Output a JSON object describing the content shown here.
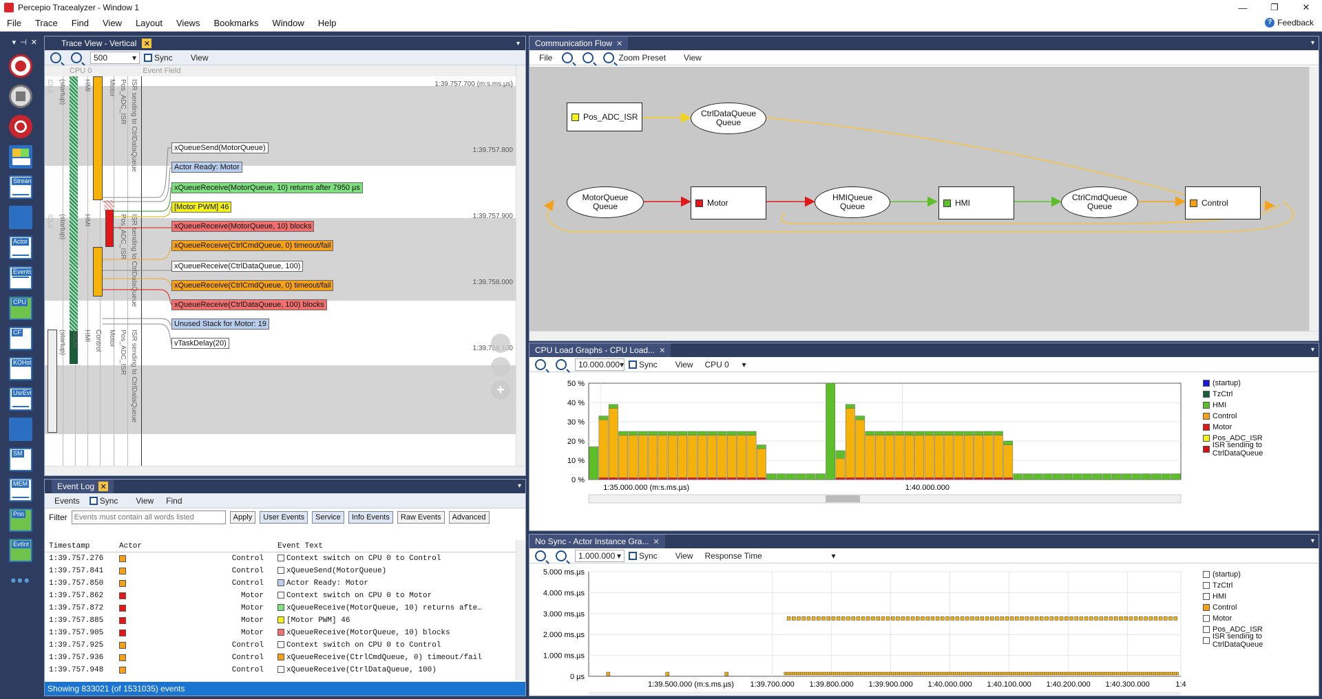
{
  "window": {
    "title": "Percepio Tracealyzer - Window 1",
    "feedback": "Feedback"
  },
  "menu": [
    "File",
    "Trace",
    "Find",
    "View",
    "Layout",
    "Views",
    "Bookmarks",
    "Window",
    "Help"
  ],
  "left_toolbar": {
    "header": [
      "▾",
      "⊣",
      "✕"
    ],
    "tools": [
      "Stream",
      "Actor",
      "Events",
      "CPU",
      "CF",
      "KOHst",
      "UsrEvt",
      "SM",
      "MEM",
      "Prio",
      "EvtInt"
    ],
    "more": "•••"
  },
  "trace_view": {
    "tab": "Trace View - Vertical",
    "zoom_value": "500",
    "sync": "Sync",
    "view": "View",
    "header_cpu": "CPU 0",
    "header_event_field": "Event Field",
    "timestamps": [
      "1:39.757.700 (m:s.ms.µs)",
      "1:39.757.800",
      "1:39.757.900",
      "1:39.758.000",
      "1:39.758.100"
    ],
    "column_labels": [
      "IDLE",
      "(startup)",
      "HMI",
      "Motor",
      "Pos_ADC_ISR",
      "ISR sending to CtrlDataQueue"
    ],
    "column_labels_2": [
      "IDLE",
      "(startup)",
      "HMI",
      "Pos_ADC_ISR",
      "ISR sending to CtrlDataQueue"
    ],
    "column_labels_3": [
      "(startup)",
      "TzCtrl",
      "HMI",
      "Control",
      "Motor",
      "Pos_ADC_ISR",
      "ISR sending to CtrlDataQueue"
    ],
    "events": [
      {
        "text": "xQueueSend(MotorQueue)",
        "bg": "#ffffff"
      },
      {
        "text": "Actor Ready: Motor",
        "bg": "#b9cdee"
      },
      {
        "text": "xQueueReceive(MotorQueue, 10) returns after 7950 µs",
        "bg": "#7fe07f"
      },
      {
        "text": "[Motor PWM] 46",
        "bg": "#f2f21a"
      },
      {
        "text": "xQueueReceive(MotorQueue, 10) blocks",
        "bg": "#f07070"
      },
      {
        "text": "xQueueReceive(CtrlCmdQueue, 0) timeout/fail",
        "bg": "#f5a21a"
      },
      {
        "text": "xQueueReceive(CtrlDataQueue, 100)",
        "bg": "#ffffff"
      },
      {
        "text": "xQueueReceive(CtrlCmdQueue, 0) timeout/fail",
        "bg": "#f5a21a"
      },
      {
        "text": "xQueueReceive(CtrlDataQueue, 100) blocks",
        "bg": "#f07070"
      },
      {
        "text": "Unused Stack for Motor: 19",
        "bg": "#b9cdee"
      },
      {
        "text": "vTaskDelay(20)",
        "bg": "#ffffff"
      }
    ]
  },
  "event_log": {
    "tab": "Event Log",
    "toolbar": [
      "Events",
      "Sync",
      "View",
      "Find"
    ],
    "filter_label": "Filter",
    "filter_placeholder": "Events must contain all words listed",
    "buttons": [
      "Apply",
      "User Events",
      "Service",
      "Info Events",
      "Raw Events",
      "Advanced"
    ],
    "columns": [
      "Timestamp",
      "Actor",
      "Event Text"
    ],
    "rows": [
      {
        "ts": "1:39.757.276",
        "actor": "Control",
        "ac": "#f5a21a",
        "ec": "#ffffff",
        "text": "Context switch on CPU 0 to Control"
      },
      {
        "ts": "1:39.757.841",
        "actor": "Control",
        "ac": "#f5a21a",
        "ec": "#ffffff",
        "text": "xQueueSend(MotorQueue)"
      },
      {
        "ts": "1:39.757.850",
        "actor": "Control",
        "ac": "#f5a21a",
        "ec": "#b9cdee",
        "text": "Actor Ready: Motor"
      },
      {
        "ts": "1:39.757.862",
        "actor": "Motor",
        "ac": "#e01818",
        "ec": "#ffffff",
        "text": "Context switch on CPU 0 to Motor"
      },
      {
        "ts": "1:39.757.872",
        "actor": "Motor",
        "ac": "#e01818",
        "ec": "#7fe07f",
        "text": "xQueueReceive(MotorQueue, 10) returns afte…"
      },
      {
        "ts": "1:39.757.885",
        "actor": "Motor",
        "ac": "#e01818",
        "ec": "#f2f21a",
        "text": "[Motor PWM] 46"
      },
      {
        "ts": "1:39.757.905",
        "actor": "Motor",
        "ac": "#e01818",
        "ec": "#f07070",
        "text": "xQueueReceive(MotorQueue, 10) blocks"
      },
      {
        "ts": "1:39.757.925",
        "actor": "Control",
        "ac": "#f5a21a",
        "ec": "#ffffff",
        "text": "Context switch on CPU 0 to Control"
      },
      {
        "ts": "1:39.757.936",
        "actor": "Control",
        "ac": "#f5a21a",
        "ec": "#f5a21a",
        "text": "xQueueReceive(CtrlCmdQueue, 0) timeout/fail"
      },
      {
        "ts": "1:39.757.948",
        "actor": "Control",
        "ac": "#f5a21a",
        "ec": "#ffffff",
        "text": "xQueueReceive(CtrlDataQueue, 100)"
      }
    ],
    "status": "Showing 833021 (of 1531035) events"
  },
  "comm_flow": {
    "tab": "Communication Flow",
    "toolbar": [
      "File",
      "Zoom Preset",
      "View"
    ],
    "nodes": [
      {
        "id": "pos",
        "label": "Pos_ADC_ISR",
        "kind": "rect",
        "color": "#f2f21a"
      },
      {
        "id": "cdq",
        "label": "CtrlDataQueue\nQueue",
        "kind": "ell"
      },
      {
        "id": "mq",
        "label": "MotorQueue\nQueue",
        "kind": "ell"
      },
      {
        "id": "motor",
        "label": "Motor",
        "kind": "rect",
        "color": "#e01818"
      },
      {
        "id": "hq",
        "label": "HMIQueue\nQueue",
        "kind": "ell"
      },
      {
        "id": "hmi",
        "label": "HMI",
        "kind": "rect",
        "color": "#5cbf2a"
      },
      {
        "id": "ccq",
        "label": "CtrlCmdQueue\nQueue",
        "kind": "ell"
      },
      {
        "id": "control",
        "label": "Control",
        "kind": "rect",
        "color": "#f5a21a"
      }
    ]
  },
  "cpu_load": {
    "tab": "CPU Load Graphs - CPU Load...",
    "zoom_value": "10.000.000",
    "sync": "Sync",
    "view": "View",
    "cpu_select": "CPU 0",
    "legend": [
      {
        "name": "(startup)",
        "color": "#1a1ad8"
      },
      {
        "name": "TzCtrl",
        "color": "#1a5f3a"
      },
      {
        "name": "HMI",
        "color": "#5cbf2a"
      },
      {
        "name": "Control",
        "color": "#f5a21a"
      },
      {
        "name": "Motor",
        "color": "#e01818"
      },
      {
        "name": "Pos_ADC_ISR",
        "color": "#f2f21a"
      },
      {
        "name": "ISR sending to CtrlDataQueue",
        "color": "#d01010"
      }
    ]
  },
  "actor_instance": {
    "tab": "No Sync - Actor Instance Gra...",
    "zoom_value": "1.000.000",
    "sync": "Sync",
    "view": "View",
    "metric_select": "Response Time",
    "legend": [
      {
        "name": "(startup)",
        "color": "#ffffff"
      },
      {
        "name": "TzCtrl",
        "color": "#ffffff"
      },
      {
        "name": "HMI",
        "color": "#ffffff"
      },
      {
        "name": "Control",
        "color": "#f5a21a"
      },
      {
        "name": "Motor",
        "color": "#ffffff"
      },
      {
        "name": "Pos_ADC_ISR",
        "color": "#ffffff"
      },
      {
        "name": "ISR sending to CtrlDataQueue",
        "color": "#ffffff"
      }
    ]
  },
  "chart_data": [
    {
      "type": "bar",
      "title": "",
      "xlabel": "",
      "ylabel": "",
      "ylim": [
        0,
        50
      ],
      "y_ticks": [
        "0 %",
        "10 %",
        "20 %",
        "30 %",
        "40 %",
        "50 %"
      ],
      "x_ticks": [
        "1:35.000.000 (m:s.ms.µs)",
        "1:40.000.000"
      ],
      "grid": true,
      "legend": "right",
      "series": [
        {
          "name": "Control",
          "values": [
            0,
            30,
            36,
            22,
            22,
            22,
            22,
            22,
            22,
            22,
            22,
            22,
            22,
            22,
            22,
            22,
            22,
            15,
            0,
            0,
            0,
            0,
            0,
            0,
            0,
            10,
            36,
            30,
            22,
            22,
            22,
            22,
            22,
            22,
            22,
            22,
            22,
            22,
            22,
            22,
            22,
            22,
            17,
            0,
            0,
            0,
            0,
            0,
            0,
            0,
            0,
            0,
            0,
            0,
            0,
            0,
            0,
            0,
            0,
            0
          ]
        },
        {
          "name": "HMI",
          "values": [
            17,
            2,
            2,
            2,
            2,
            2,
            2,
            2,
            2,
            2,
            2,
            2,
            2,
            2,
            2,
            2,
            2,
            2,
            3,
            3,
            3,
            3,
            3,
            3,
            50,
            4,
            2,
            2,
            2,
            2,
            2,
            2,
            2,
            2,
            2,
            2,
            2,
            2,
            2,
            2,
            2,
            2,
            2,
            3,
            3,
            3,
            3,
            3,
            3,
            3,
            3,
            3,
            3,
            3,
            3,
            3,
            3,
            3,
            3,
            3
          ]
        },
        {
          "name": "Motor",
          "values": [
            0,
            1,
            1,
            1,
            1,
            1,
            1,
            1,
            1,
            1,
            1,
            1,
            1,
            1,
            1,
            1,
            1,
            1,
            0,
            0,
            0,
            0,
            0,
            0,
            0,
            1,
            1,
            1,
            1,
            1,
            1,
            1,
            1,
            1,
            1,
            1,
            1,
            1,
            1,
            1,
            1,
            1,
            1,
            0,
            0,
            0,
            0,
            0,
            0,
            0,
            0,
            0,
            0,
            0,
            0,
            0,
            0,
            0,
            0,
            0
          ]
        }
      ]
    },
    {
      "type": "scatter",
      "title": "",
      "xlabel": "",
      "ylabel": "",
      "ylim": [
        0,
        5000
      ],
      "y_ticks": [
        "0 µs",
        "1.000 ms.µs",
        "2.000 ms.µs",
        "3.000 ms.µs",
        "4.000 ms.µs",
        "5.000 ms.µs"
      ],
      "x_ticks": [
        "1:39.500.000 (m:s.ms.µs)",
        "1:39.700.000",
        "1:39.800.000",
        "1:39.900.000",
        "1:40.000.000",
        "1:40.100.000",
        "1:40.200.000",
        "1:40.300.000",
        "1:4"
      ],
      "grid": true,
      "legend": "right",
      "series": [
        {
          "name": "Control",
          "upper_y": 2750,
          "lower_y": 100
        }
      ]
    }
  ]
}
